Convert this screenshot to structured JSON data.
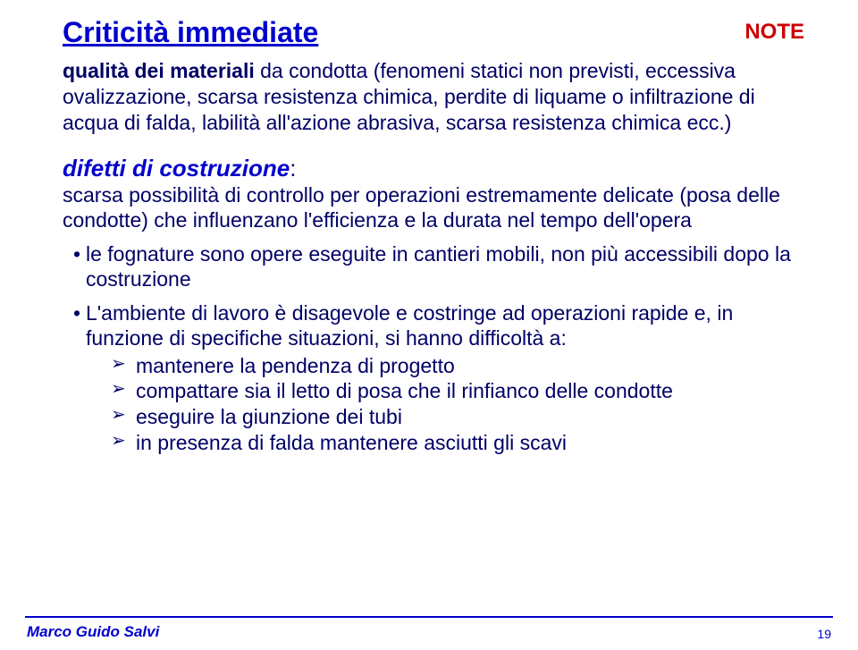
{
  "title": "Criticità immediate",
  "note_label": "NOTE",
  "intro_bold": "qualità dei materiali ",
  "intro_rest": "da condotta (fenomeni statici non previsti, eccessiva ovalizzazione, scarsa resistenza chimica, perdite di liquame o infiltrazione di acqua di falda, labilità all'azione abrasiva, scarsa resistenza chimica ecc.)",
  "subhead": "difetti di costruzione",
  "subhead_colon": ":",
  "subdesc": "scarsa possibilità di controllo per operazioni estremamente delicate (posa delle condotte) che influenzano l'efficienza e la durata nel tempo dell'opera",
  "bullets": [
    "le fognature sono opere eseguite in cantieri mobili, non più accessibili dopo la costruzione",
    "L'ambiente di lavoro è disagevole e costringe ad operazioni rapide e, in funzione di specifiche situazioni, si hanno  difficoltà a:"
  ],
  "sub_bullets": [
    "mantenere la pendenza di progetto",
    "compattare sia il letto di posa che il rinfianco delle condotte",
    "eseguire la giunzione dei tubi",
    "in presenza di falda mantenere asciutti gli scavi"
  ],
  "footer_author": "Marco Guido Salvi",
  "footer_page": "19"
}
